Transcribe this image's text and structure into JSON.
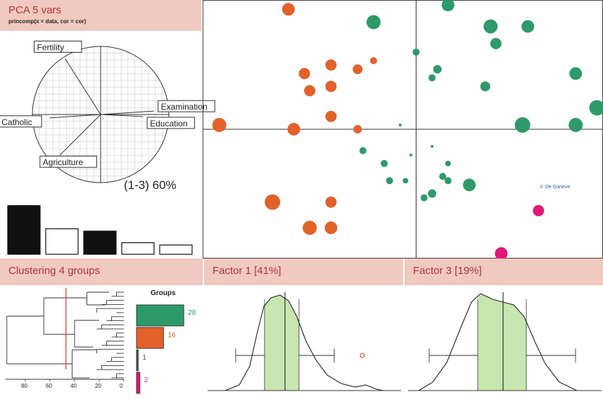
{
  "pca_header": {
    "title": "PCA  5 vars",
    "subtitle": "princomp(x = data, cor = cor)"
  },
  "cluster_header": {
    "title": "Clustering  4 groups"
  },
  "factor1_header": {
    "title": "Factor 1 [41%]"
  },
  "factor3_header": {
    "title": "Factor 3 [19%]"
  },
  "circle_label": "(1-3) 60%",
  "author": "V. De Ganeve",
  "colors": {
    "group1": "#e2622a",
    "group2": "#2e9a6a",
    "group3": "#333333",
    "group4": "#e0187a",
    "header_bg": "#f0c9c0",
    "header_text": "#b0333a",
    "density_fill": "#c8e6b0"
  },
  "chart_data": [
    {
      "type": "vector",
      "name_hint": "correlation-circle",
      "vectors": [
        {
          "label": "Fertility",
          "x": -0.52,
          "y": 0.82
        },
        {
          "label": "Examination",
          "x": 0.78,
          "y": 0.05
        },
        {
          "label": "Education",
          "x": 0.62,
          "y": -0.03
        },
        {
          "label": "Catholic",
          "x": -0.75,
          "y": -0.05
        },
        {
          "label": "Agriculture",
          "x": -0.6,
          "y": -0.6
        }
      ]
    },
    {
      "type": "bar",
      "name_hint": "eigenvalue-scree",
      "values": [
        2.1,
        1.1,
        1.0,
        0.5,
        0.4
      ],
      "selected": [
        true,
        false,
        true,
        false,
        false
      ]
    },
    {
      "type": "scatter",
      "name_hint": "pca-scores",
      "xlim": [
        -4,
        3.5
      ],
      "ylim": [
        -3,
        3
      ],
      "points": [
        {
          "x": -2.4,
          "y": 2.8,
          "s": 9,
          "g": 1
        },
        {
          "x": 0.6,
          "y": 2.9,
          "s": 9,
          "g": 2
        },
        {
          "x": -0.8,
          "y": 2.5,
          "s": 10,
          "g": 2
        },
        {
          "x": 1.4,
          "y": 2.4,
          "s": 10,
          "g": 2
        },
        {
          "x": 2.1,
          "y": 2.4,
          "s": 9,
          "g": 2
        },
        {
          "x": 1.5,
          "y": 2.0,
          "s": 8,
          "g": 2
        },
        {
          "x": 0.0,
          "y": 1.8,
          "s": 5,
          "g": 2
        },
        {
          "x": -2.1,
          "y": 1.3,
          "s": 8,
          "g": 1
        },
        {
          "x": -1.6,
          "y": 1.5,
          "s": 8,
          "g": 1
        },
        {
          "x": -1.1,
          "y": 1.4,
          "s": 7,
          "g": 1
        },
        {
          "x": -0.8,
          "y": 1.6,
          "s": 5,
          "g": 1
        },
        {
          "x": 0.4,
          "y": 1.4,
          "s": 6,
          "g": 2
        },
        {
          "x": 0.3,
          "y": 1.2,
          "s": 5,
          "g": 2
        },
        {
          "x": -1.6,
          "y": 1.0,
          "s": 8,
          "g": 1
        },
        {
          "x": -2.0,
          "y": 0.9,
          "s": 8,
          "g": 1
        },
        {
          "x": 1.3,
          "y": 1.0,
          "s": 7,
          "g": 2
        },
        {
          "x": 3.0,
          "y": 1.3,
          "s": 9,
          "g": 2
        },
        {
          "x": 3.4,
          "y": 0.5,
          "s": 11,
          "g": 2
        },
        {
          "x": 2.0,
          "y": 0.1,
          "s": 11,
          "g": 2
        },
        {
          "x": 3.0,
          "y": 0.1,
          "s": 10,
          "g": 2
        },
        {
          "x": -3.7,
          "y": 0.1,
          "s": 10,
          "g": 1
        },
        {
          "x": -2.3,
          "y": 0.0,
          "s": 9,
          "g": 1
        },
        {
          "x": -1.6,
          "y": 0.3,
          "s": 8,
          "g": 1
        },
        {
          "x": -1.1,
          "y": 0.0,
          "s": 6,
          "g": 1
        },
        {
          "x": -0.3,
          "y": 0.1,
          "s": 2,
          "g": 2
        },
        {
          "x": -1.0,
          "y": -0.5,
          "s": 5,
          "g": 2
        },
        {
          "x": -0.1,
          "y": -0.6,
          "s": 2,
          "g": 2
        },
        {
          "x": 0.3,
          "y": -0.4,
          "s": 2,
          "g": 2
        },
        {
          "x": -0.6,
          "y": -0.8,
          "s": 5,
          "g": 2
        },
        {
          "x": 0.6,
          "y": -0.8,
          "s": 4,
          "g": 2
        },
        {
          "x": 0.5,
          "y": -1.1,
          "s": 5,
          "g": 2
        },
        {
          "x": 0.6,
          "y": -1.2,
          "s": 5,
          "g": 2
        },
        {
          "x": -0.5,
          "y": -1.2,
          "s": 5,
          "g": 2
        },
        {
          "x": -0.2,
          "y": -1.2,
          "s": 4,
          "g": 2
        },
        {
          "x": 1.0,
          "y": -1.3,
          "s": 9,
          "g": 2
        },
        {
          "x": 0.3,
          "y": -1.5,
          "s": 6,
          "g": 2
        },
        {
          "x": 0.15,
          "y": -1.6,
          "s": 5,
          "g": 2
        },
        {
          "x": -2.7,
          "y": -1.7,
          "s": 11,
          "g": 1
        },
        {
          "x": -1.6,
          "y": -1.7,
          "s": 8,
          "g": 1
        },
        {
          "x": -2.0,
          "y": -2.3,
          "s": 10,
          "g": 1
        },
        {
          "x": -1.6,
          "y": -2.3,
          "s": 9,
          "g": 1
        },
        {
          "x": 2.3,
          "y": -1.9,
          "s": 8,
          "g": 4
        },
        {
          "x": 1.6,
          "y": -2.9,
          "s": 9,
          "g": 4
        }
      ]
    },
    {
      "type": "bar",
      "name_hint": "group-sizes",
      "title": "Groups",
      "values": [
        28,
        16,
        1,
        2
      ]
    },
    {
      "type": "line",
      "name_hint": "dendrogram",
      "x_ticks": [
        80,
        60,
        40,
        20,
        0
      ],
      "cut": 47
    },
    {
      "type": "area",
      "name_hint": "factor1-density",
      "xlim": [
        -3,
        5
      ],
      "outlier": 3.7
    },
    {
      "type": "area",
      "name_hint": "factor3-density",
      "xlim": [
        -3,
        3
      ]
    }
  ]
}
